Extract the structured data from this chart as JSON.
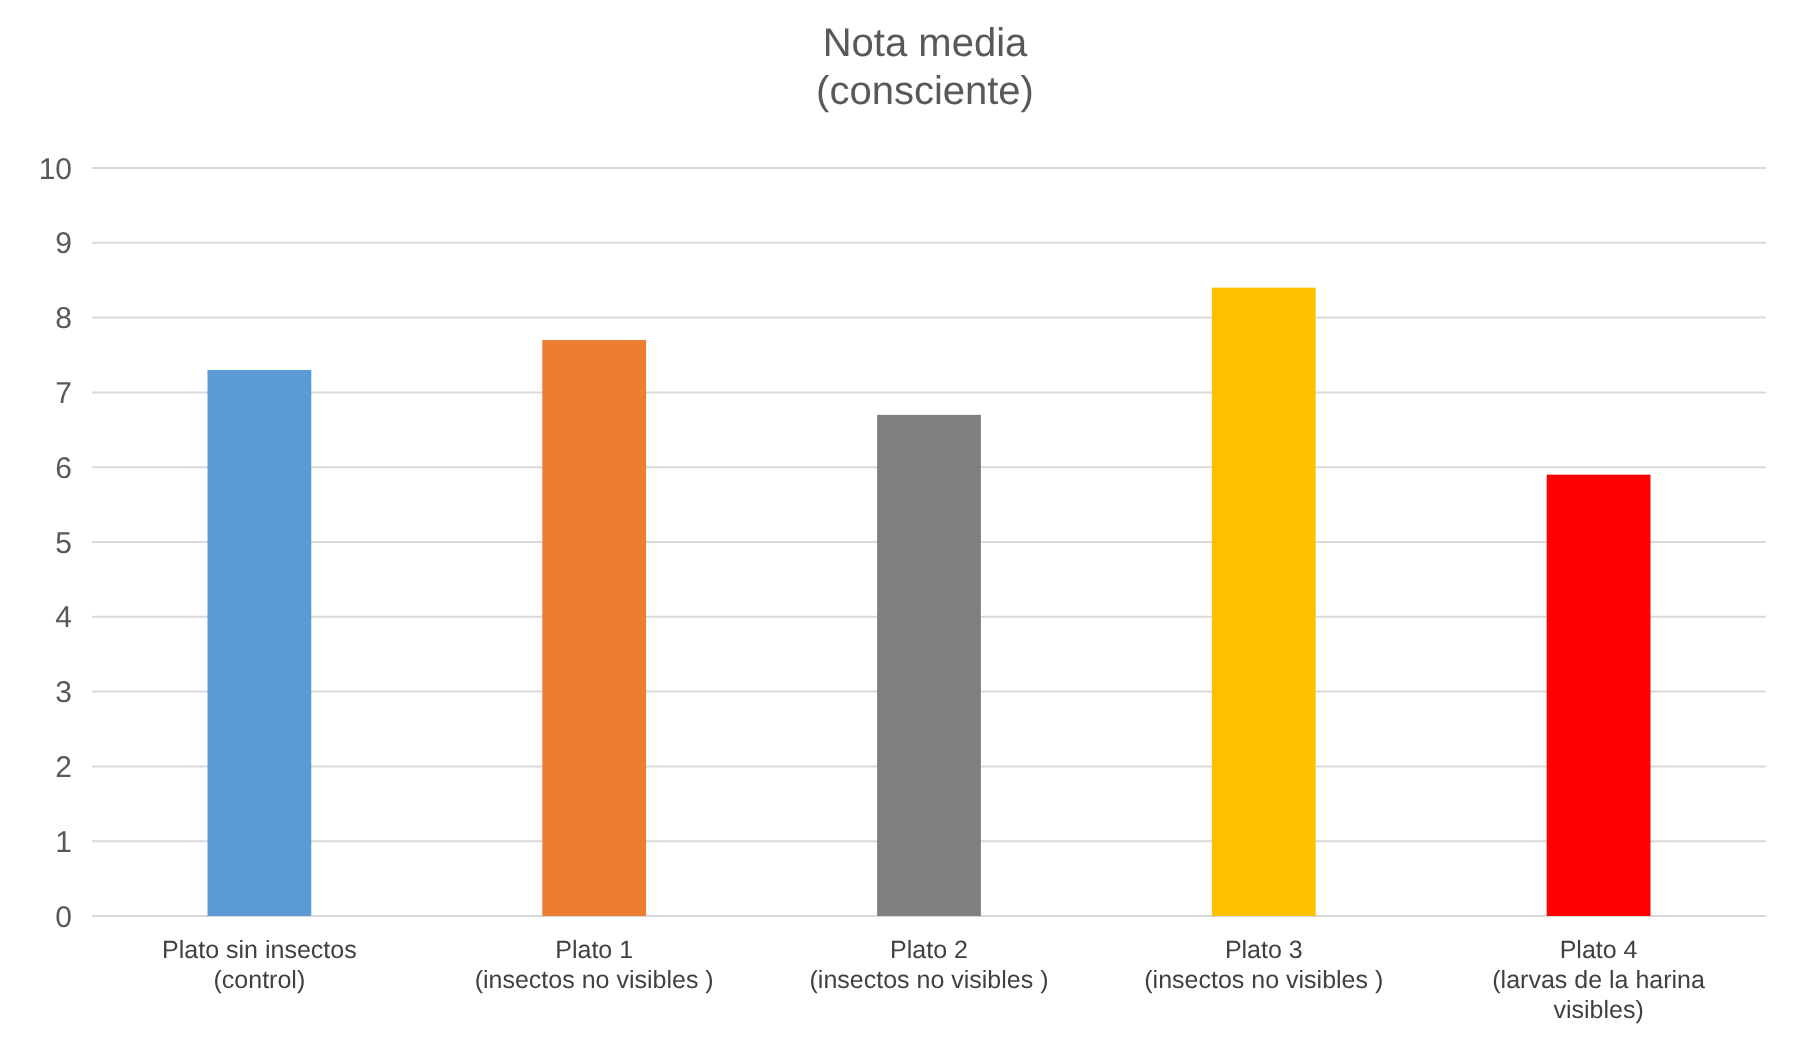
{
  "chart_data": {
    "type": "bar",
    "title": "Nota media\n(consciente)",
    "categories": [
      "Plato sin insectos\n(control)",
      "Plato 1\n(insectos no visibles )",
      "Plato 2\n(insectos no visibles )",
      "Plato 3\n(insectos no visibles )",
      "Plato 4\n(larvas de la harina\nvisibles)"
    ],
    "values": [
      7.3,
      7.7,
      6.7,
      8.4,
      5.9
    ],
    "colors": [
      "#5b9bd5",
      "#ed7d31",
      "#7f7f7f",
      "#ffc000",
      "#ff0000"
    ],
    "ylim": [
      0,
      10
    ],
    "yticks": [
      0,
      1,
      2,
      3,
      4,
      5,
      6,
      7,
      8,
      9,
      10
    ],
    "grid": "y"
  }
}
